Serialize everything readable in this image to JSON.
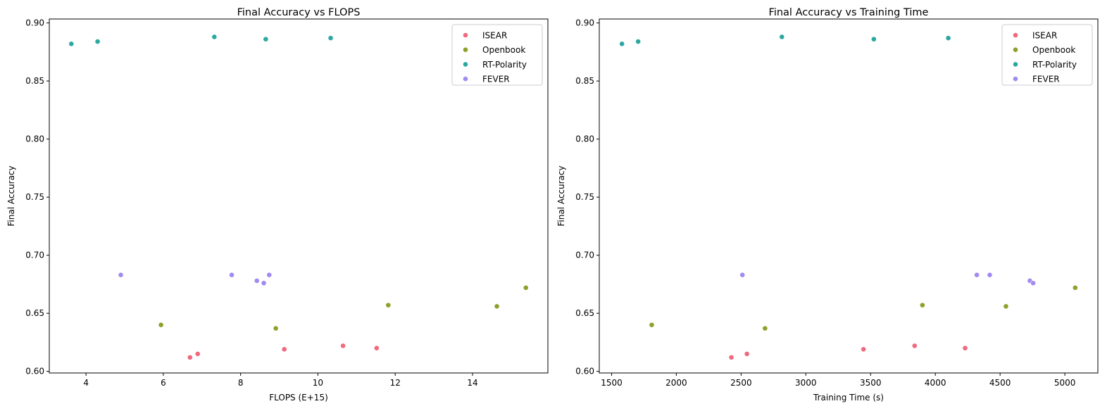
{
  "chart_data": [
    {
      "type": "scatter",
      "title": "Final Accuracy vs FLOPS",
      "xlabel": "FLOPS (E+15)",
      "ylabel": "Final Accuracy",
      "xlim": [
        3.05,
        15.95
      ],
      "ylim": [
        0.5986,
        0.9034
      ],
      "xticks": [
        4,
        6,
        8,
        10,
        12,
        14
      ],
      "xtick_labels": [
        "4",
        "6",
        "8",
        "10",
        "12",
        "14"
      ],
      "yticks": [
        0.6,
        0.65,
        0.7,
        0.75,
        0.8,
        0.85,
        0.9
      ],
      "ytick_labels": [
        "0.60",
        "0.65",
        "0.70",
        "0.75",
        "0.80",
        "0.85",
        "0.90"
      ],
      "grid": false,
      "legend_position": "top-right",
      "series": [
        {
          "name": "ISEAR",
          "color": "#f0697d",
          "points": [
            [
              6.69,
              0.612
            ],
            [
              6.89,
              0.615
            ],
            [
              9.13,
              0.619
            ],
            [
              10.65,
              0.622
            ],
            [
              11.52,
              0.62
            ]
          ]
        },
        {
          "name": "Openbook",
          "color": "#8da12c",
          "points": [
            [
              5.94,
              0.64
            ],
            [
              8.91,
              0.637
            ],
            [
              11.82,
              0.657
            ],
            [
              14.63,
              0.656
            ],
            [
              15.38,
              0.672
            ]
          ]
        },
        {
          "name": "RT-Polarity",
          "color": "#2ba8a0",
          "points": [
            [
              3.62,
              0.882
            ],
            [
              4.3,
              0.884
            ],
            [
              7.32,
              0.888
            ],
            [
              8.65,
              0.886
            ],
            [
              10.33,
              0.887
            ]
          ]
        },
        {
          "name": "FEVER",
          "color": "#a18af0",
          "points": [
            [
              4.9,
              0.683
            ],
            [
              7.77,
              0.683
            ],
            [
              8.42,
              0.678
            ],
            [
              8.6,
              0.676
            ],
            [
              8.74,
              0.683
            ]
          ]
        }
      ]
    },
    {
      "type": "scatter",
      "title": "Final Accuracy vs Training Time",
      "xlabel": "Training Time (s)",
      "ylabel": "Final Accuracy",
      "xlim": [
        1405,
        5255
      ],
      "ylim": [
        0.5986,
        0.9034
      ],
      "xticks": [
        1500,
        2000,
        2500,
        3000,
        3500,
        4000,
        4500,
        5000
      ],
      "xtick_labels": [
        "1500",
        "2000",
        "2500",
        "3000",
        "3500",
        "4000",
        "4500",
        "5000"
      ],
      "yticks": [
        0.6,
        0.65,
        0.7,
        0.75,
        0.8,
        0.85,
        0.9
      ],
      "ytick_labels": [
        "0.60",
        "0.65",
        "0.70",
        "0.75",
        "0.80",
        "0.85",
        "0.90"
      ],
      "grid": false,
      "legend_position": "top-right",
      "series": [
        {
          "name": "ISEAR",
          "color": "#f0697d",
          "points": [
            [
              2425,
              0.612
            ],
            [
              2545,
              0.615
            ],
            [
              3445,
              0.619
            ],
            [
              3840,
              0.622
            ],
            [
              4230,
              0.62
            ]
          ]
        },
        {
          "name": "Openbook",
          "color": "#8da12c",
          "points": [
            [
              1810,
              0.64
            ],
            [
              2685,
              0.637
            ],
            [
              3900,
              0.657
            ],
            [
              4545,
              0.656
            ],
            [
              5080,
              0.672
            ]
          ]
        },
        {
          "name": "RT-Polarity",
          "color": "#2ba8a0",
          "points": [
            [
              1580,
              0.882
            ],
            [
              1705,
              0.884
            ],
            [
              2815,
              0.888
            ],
            [
              3525,
              0.886
            ],
            [
              4100,
              0.887
            ]
          ]
        },
        {
          "name": "FEVER",
          "color": "#a18af0",
          "points": [
            [
              2510,
              0.683
            ],
            [
              4320,
              0.683
            ],
            [
              4420,
              0.683
            ],
            [
              4730,
              0.678
            ],
            [
              4755,
              0.676
            ]
          ]
        }
      ]
    }
  ]
}
